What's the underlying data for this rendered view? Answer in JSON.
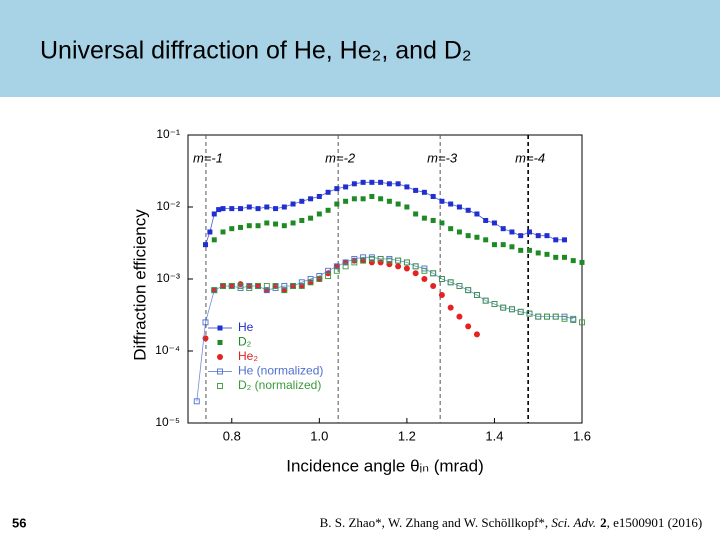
{
  "header": {
    "title": "Universal diffraction of He, He₂, and D₂"
  },
  "chart_data": {
    "type": "scatter",
    "x_label": "Incidence angle θᵢₙ (mrad)",
    "y_label": "Diffraction efficiency",
    "xlim": [
      0.7,
      1.6
    ],
    "xticks": [
      0.8,
      {
        "value": 1,
        "label": "1.0"
      },
      1.2,
      1.4,
      1.6
    ],
    "ylim": [
      1e-05,
      0.1
    ],
    "ylog": true,
    "yticks": [
      {
        "value": 1e-05,
        "label": "10⁻⁵"
      },
      {
        "value": 0.0001,
        "label": "10⁻⁴"
      },
      {
        "value": 0.001,
        "label": "10⁻³"
      },
      {
        "value": 0.01,
        "label": "10⁻²"
      },
      {
        "value": 0.1,
        "label": "10⁻¹"
      }
    ],
    "legend": "lower left",
    "vlines": [
      {
        "x": 0.741,
        "label": "m=-1"
      },
      {
        "x": 1.043,
        "label": "m=-2"
      },
      {
        "x": 1.276,
        "label": "m=-3"
      },
      {
        "x": 1.477,
        "label": "m=-4"
      }
    ],
    "series": [
      {
        "name": "He",
        "color": "#1f2fd0",
        "marker": "square",
        "line": true,
        "x": [
          0.74,
          0.75,
          0.76,
          0.77,
          0.78,
          0.8,
          0.82,
          0.84,
          0.86,
          0.88,
          0.9,
          0.92,
          0.94,
          0.96,
          0.98,
          1.0,
          1.02,
          1.04,
          1.06,
          1.08,
          1.1,
          1.12,
          1.14,
          1.16,
          1.18,
          1.2,
          1.22,
          1.24,
          1.26,
          1.28,
          1.3,
          1.32,
          1.34,
          1.36,
          1.38,
          1.4,
          1.42,
          1.44,
          1.46,
          1.48,
          1.5,
          1.52,
          1.54,
          1.56
        ],
        "values": [
          0.003,
          0.0045,
          0.008,
          0.0092,
          0.0095,
          0.0095,
          0.0095,
          0.01,
          0.0095,
          0.01,
          0.0095,
          0.01,
          0.011,
          0.012,
          0.013,
          0.014,
          0.016,
          0.018,
          0.019,
          0.021,
          0.022,
          0.022,
          0.022,
          0.021,
          0.021,
          0.019,
          0.017,
          0.016,
          0.014,
          0.012,
          0.011,
          0.01,
          0.009,
          0.008,
          0.0065,
          0.006,
          0.005,
          0.0045,
          0.004,
          0.0045,
          0.004,
          0.004,
          0.0035,
          0.0035
        ]
      },
      {
        "name": "D₂",
        "color": "#1d8a24",
        "marker": "square",
        "line": false,
        "x": [
          0.76,
          0.78,
          0.8,
          0.82,
          0.84,
          0.86,
          0.88,
          0.9,
          0.92,
          0.94,
          0.96,
          0.98,
          1.0,
          1.02,
          1.04,
          1.06,
          1.08,
          1.1,
          1.12,
          1.14,
          1.16,
          1.18,
          1.2,
          1.22,
          1.24,
          1.26,
          1.28,
          1.3,
          1.32,
          1.34,
          1.36,
          1.38,
          1.4,
          1.42,
          1.44,
          1.46,
          1.48,
          1.5,
          1.52,
          1.54,
          1.56,
          1.58,
          1.6
        ],
        "values": [
          0.0035,
          0.0045,
          0.005,
          0.0052,
          0.0055,
          0.0055,
          0.006,
          0.0058,
          0.0055,
          0.006,
          0.0065,
          0.007,
          0.008,
          0.009,
          0.011,
          0.012,
          0.013,
          0.013,
          0.014,
          0.013,
          0.012,
          0.011,
          0.01,
          0.008,
          0.007,
          0.0065,
          0.006,
          0.005,
          0.0045,
          0.004,
          0.0038,
          0.0035,
          0.003,
          0.003,
          0.0028,
          0.0025,
          0.0025,
          0.0023,
          0.0022,
          0.002,
          0.002,
          0.0018,
          0.0017
        ]
      },
      {
        "name": "He₂",
        "color": "#e52222",
        "marker": "circle",
        "line": false,
        "x": [
          0.74,
          0.76,
          0.78,
          0.8,
          0.82,
          0.84,
          0.86,
          0.88,
          0.9,
          0.92,
          0.94,
          0.96,
          0.98,
          1.0,
          1.02,
          1.04,
          1.06,
          1.08,
          1.1,
          1.12,
          1.14,
          1.16,
          1.18,
          1.2,
          1.22,
          1.24,
          1.26,
          1.28,
          1.3,
          1.32,
          1.34,
          1.36
        ],
        "values": [
          0.00015,
          0.0007,
          0.0008,
          0.0008,
          0.00085,
          0.0008,
          0.0008,
          0.0007,
          0.0008,
          0.0007,
          0.0008,
          0.0008,
          0.0009,
          0.001,
          0.0012,
          0.0015,
          0.0017,
          0.0018,
          0.0018,
          0.0017,
          0.0017,
          0.0016,
          0.0015,
          0.0014,
          0.0012,
          0.001,
          0.0008,
          0.0006,
          0.0004,
          0.0003,
          0.00022,
          0.00017
        ]
      },
      {
        "name": "He (normalized)",
        "color": "#4f6fd0",
        "marker": "open-square",
        "line": true,
        "x": [
          0.72,
          0.74,
          0.76,
          0.78,
          0.8,
          0.82,
          0.84,
          0.86,
          0.88,
          0.9,
          0.92,
          0.94,
          0.96,
          0.98,
          1.0,
          1.02,
          1.04,
          1.06,
          1.08,
          1.1,
          1.12,
          1.14,
          1.16,
          1.18,
          1.2,
          1.22,
          1.24,
          1.26,
          1.28,
          1.3,
          1.32,
          1.34,
          1.36,
          1.38,
          1.4,
          1.42,
          1.44,
          1.46,
          1.48,
          1.5,
          1.52,
          1.54,
          1.56,
          1.58
        ],
        "values": [
          2e-05,
          0.00025,
          0.0007,
          0.0008,
          0.0008,
          0.00075,
          0.0008,
          0.0008,
          0.0007,
          0.00075,
          0.0008,
          0.0008,
          0.0009,
          0.001,
          0.0011,
          0.0013,
          0.0015,
          0.0017,
          0.0019,
          0.002,
          0.002,
          0.0019,
          0.0019,
          0.0018,
          0.0017,
          0.0015,
          0.0014,
          0.0012,
          0.001,
          0.0009,
          0.0008,
          0.0007,
          0.0006,
          0.0005,
          0.00045,
          0.0004,
          0.00038,
          0.00035,
          0.00033,
          0.0003,
          0.0003,
          0.0003,
          0.0003,
          0.00028
        ]
      },
      {
        "name": "D₂ (normalized)",
        "color": "#3a9a3a",
        "marker": "open-square",
        "line": false,
        "x": [
          0.76,
          0.78,
          0.8,
          0.82,
          0.84,
          0.86,
          0.88,
          0.9,
          0.92,
          0.94,
          0.96,
          0.98,
          1.0,
          1.02,
          1.04,
          1.06,
          1.08,
          1.1,
          1.12,
          1.14,
          1.16,
          1.18,
          1.2,
          1.22,
          1.24,
          1.26,
          1.28,
          1.3,
          1.32,
          1.34,
          1.36,
          1.38,
          1.4,
          1.42,
          1.44,
          1.46,
          1.48,
          1.5,
          1.52,
          1.54,
          1.56,
          1.58,
          1.6
        ],
        "values": [
          0.0007,
          0.0008,
          0.0008,
          0.0008,
          0.00075,
          0.0008,
          0.0008,
          0.0008,
          0.0007,
          0.0008,
          0.0008,
          0.0009,
          0.001,
          0.0011,
          0.0013,
          0.0015,
          0.0017,
          0.0018,
          0.0019,
          0.0019,
          0.0018,
          0.0018,
          0.0017,
          0.0015,
          0.0013,
          0.0012,
          0.001,
          0.0009,
          0.0008,
          0.0007,
          0.0006,
          0.0005,
          0.00045,
          0.0004,
          0.00038,
          0.00035,
          0.00033,
          0.0003,
          0.0003,
          0.0003,
          0.00028,
          0.00027,
          0.00025
        ]
      }
    ]
  },
  "footer": {
    "page_number": "56",
    "citation": [
      "B. S. Zhao*, W. Zhang and W. Schöllkopf*, ",
      "Sci. Adv.",
      "2",
      ", e1500901 (2016)"
    ]
  }
}
